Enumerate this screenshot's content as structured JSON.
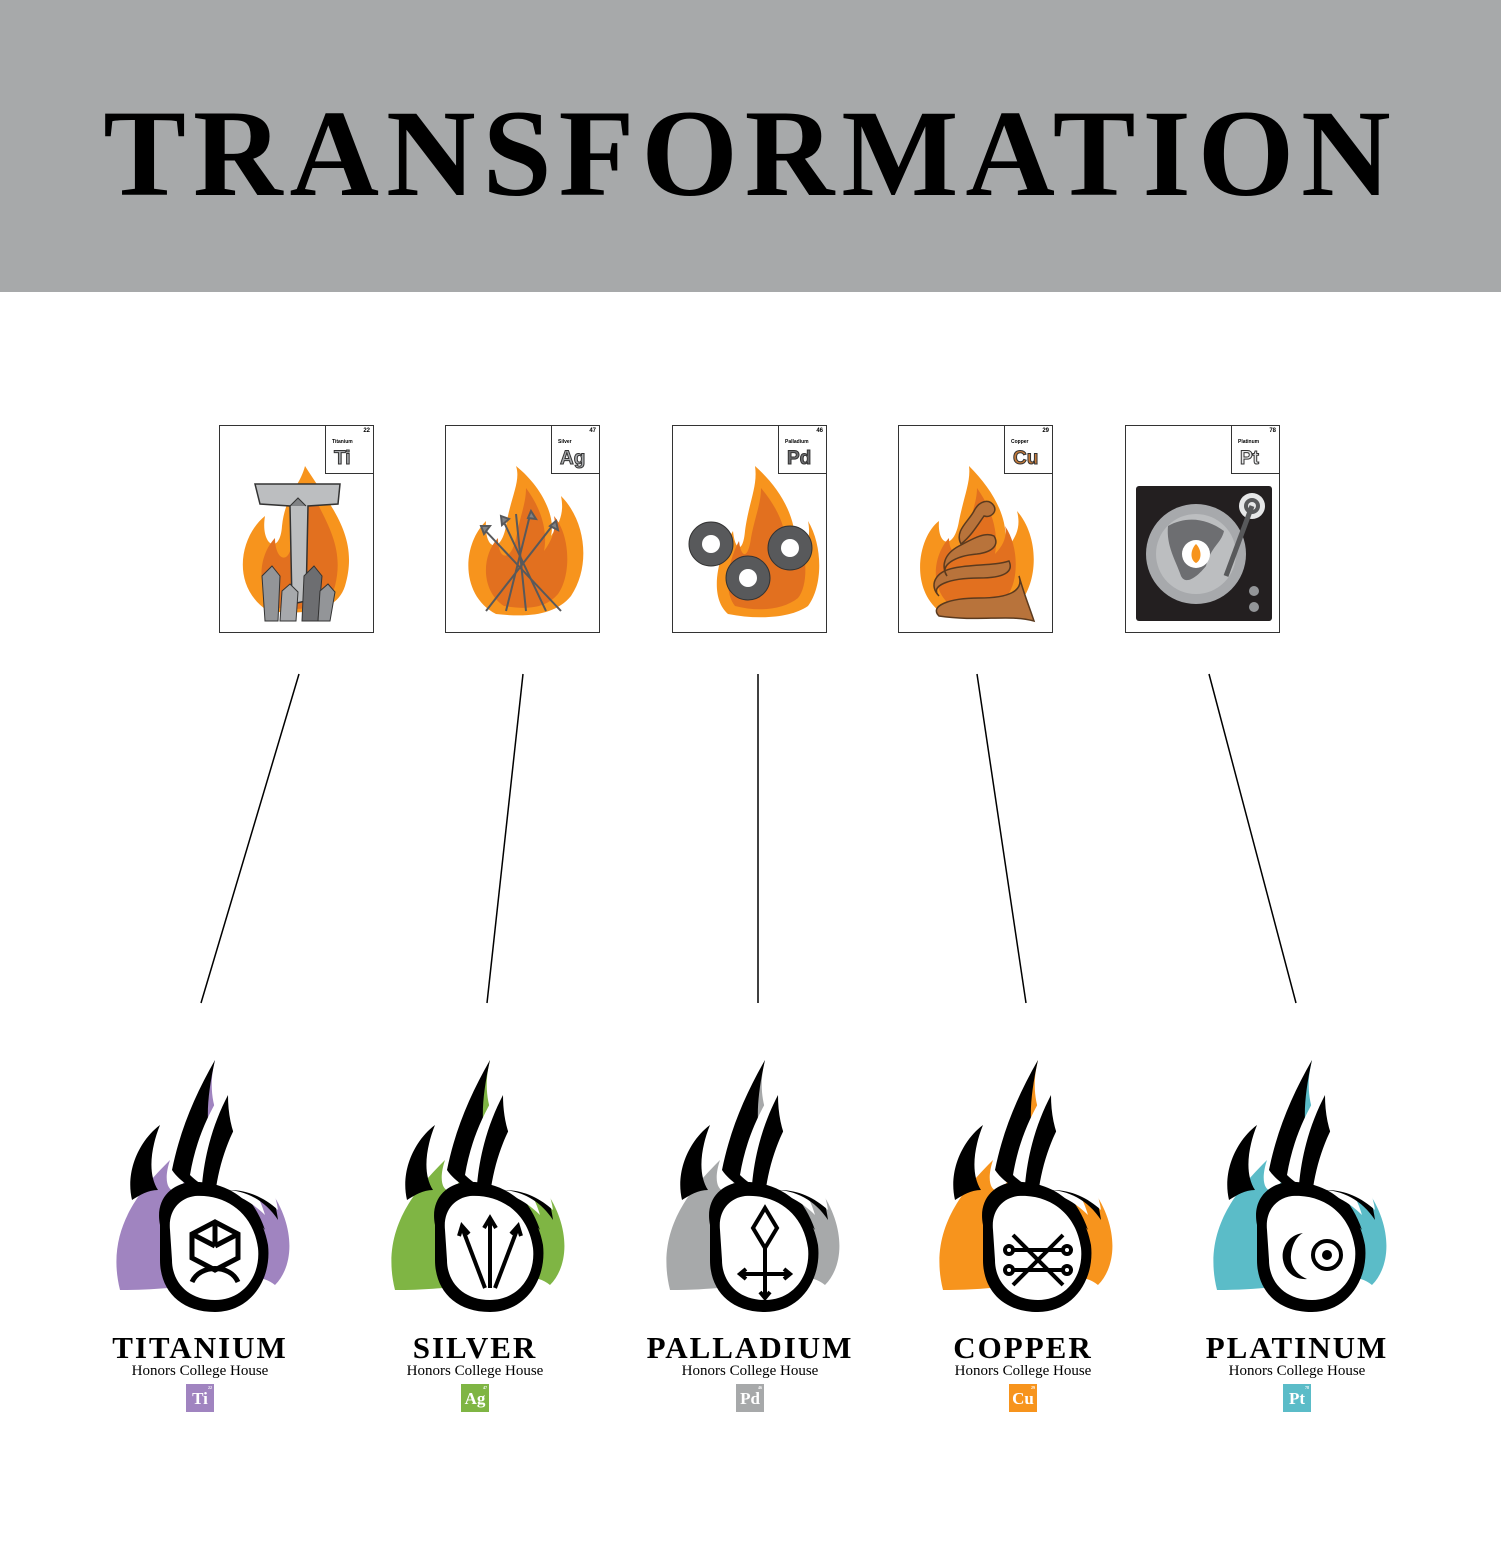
{
  "title": "TRANSFORMATION",
  "cards": [
    {
      "name": "Titanium",
      "symbol": "Ti",
      "number": "22",
      "symbol_color": "#a7a9ac",
      "art": "crystal-t-icon"
    },
    {
      "name": "Silver",
      "symbol": "Ag",
      "number": "47",
      "symbol_color": "#a7a9ac",
      "art": "arrows-icon"
    },
    {
      "name": "Palladium",
      "symbol": "Pd",
      "number": "46",
      "symbol_color": "#6d6e71",
      "art": "gears-icon"
    },
    {
      "name": "Copper",
      "symbol": "Cu",
      "number": "29",
      "symbol_color": "#c47a3a",
      "art": "snake-icon"
    },
    {
      "name": "Platinum",
      "symbol": "Pt",
      "number": "78",
      "symbol_color": "#e6e7e8",
      "art": "record-player-icon"
    }
  ],
  "houses": [
    {
      "name": "TITANIUM",
      "subtitle": "Honors College House",
      "symbol": "Ti",
      "number": "22",
      "color": "#a084c0",
      "glyph": "titanium-glyph-icon"
    },
    {
      "name": "SILVER",
      "subtitle": "Honors College House",
      "symbol": "Ag",
      "number": "47",
      "color": "#7fb544",
      "glyph": "trident-glyph-icon"
    },
    {
      "name": "PALLADIUM",
      "subtitle": "Honors College House",
      "symbol": "Pd",
      "number": "46",
      "color": "#a7a9aa",
      "glyph": "diamond-cross-glyph-icon"
    },
    {
      "name": "COPPER",
      "subtitle": "Honors College House",
      "symbol": "Cu",
      "number": "29",
      "color": "#f7941d",
      "glyph": "copper-glyph-icon"
    },
    {
      "name": "PLATINUM",
      "subtitle": "Honors College House",
      "symbol": "Pt",
      "number": "78",
      "color": "#5bbcc8",
      "glyph": "moon-sun-glyph-icon"
    }
  ],
  "colors": {
    "banner": "#a7a9aa",
    "flame_orange": "#f7941d",
    "flame_dark": "#e2701f"
  }
}
